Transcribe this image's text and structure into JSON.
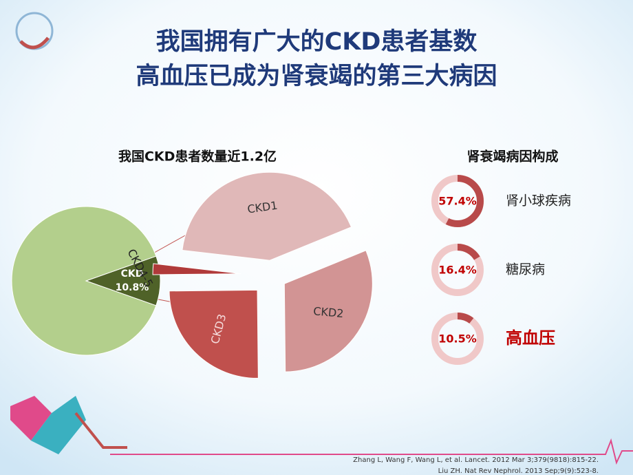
{
  "title": [
    "我国拥有广大的CKD患者基数",
    "高血压已成为肾衰竭的第三大病因"
  ],
  "chart_data": [
    {
      "type": "pie",
      "title": "我国CKD患者数量近1.2亿",
      "categories": [
        "CKD",
        null
      ],
      "values": [
        10.8,
        89.2
      ],
      "value_labels": [
        "10.8%",
        null
      ],
      "colors": [
        "#4f6228",
        "#b3cf8c"
      ]
    },
    {
      "type": "pie",
      "categories": [
        "CKD1",
        "CKD2",
        "CKD3",
        "CKD4-5"
      ],
      "values": [
        42,
        31,
        25,
        2
      ],
      "colors": [
        "#e0b8b8",
        "#d29494",
        "#c0504d",
        "#b03a3a"
      ]
    },
    {
      "type": "donut",
      "title": "肾衰竭病因构成",
      "categories": [
        "肾小球疾病",
        "糖尿病",
        "高血压"
      ],
      "values": [
        57.4,
        16.4,
        10.5
      ],
      "value_labels": [
        "57.4%",
        "16.4%",
        "10.5%"
      ],
      "color": "#b84a4a",
      "track_color": "#f0c8c8",
      "label_colors": [
        "#222222",
        "#222222",
        "#c00000"
      ]
    }
  ],
  "references": [
    "Zhang L, Wang F, Wang L, et al.  Lancet. 2012 Mar 3;379(9818):815-22.",
    "Liu ZH. Nat Rev Nephrol. 2013 Sep;9(9):523-8."
  ]
}
